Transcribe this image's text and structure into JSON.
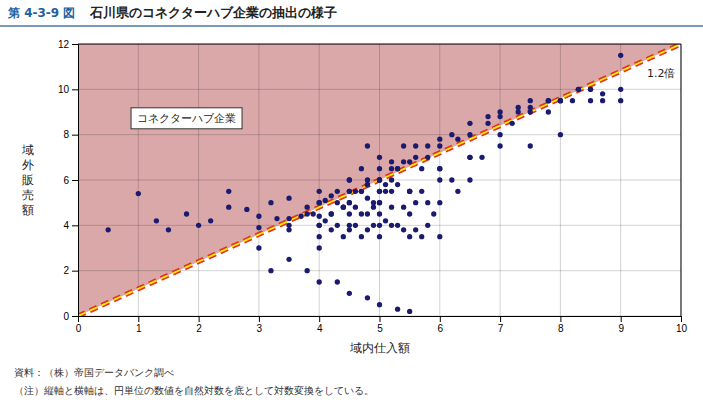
{
  "chart_data": {
    "type": "scatter",
    "figure_label": "第 4-3-9 図",
    "title": "石川県のコネクターハブ企業の抽出の様子",
    "xlabel": "域内仕入額",
    "ylabel": "域外販売額",
    "xlim": [
      0,
      10
    ],
    "ylim": [
      0,
      12
    ],
    "xticks": [
      0,
      1,
      2,
      3,
      4,
      5,
      6,
      7,
      8,
      9,
      10
    ],
    "yticks": [
      0,
      2,
      4,
      6,
      8,
      10,
      12
    ],
    "grid": true,
    "color": "#1a1a6e",
    "marker": "circle",
    "x": [
      0.5,
      1.0,
      1.3,
      1.5,
      1.8,
      2.0,
      2.2,
      2.5,
      2.5,
      2.8,
      3.0,
      3.0,
      3.0,
      3.2,
      3.3,
      3.5,
      3.5,
      3.5,
      3.7,
      3.8,
      3.9,
      4.0,
      4.0,
      4.0,
      4.0,
      4.0,
      4.1,
      4.1,
      4.2,
      4.2,
      4.3,
      4.3,
      4.4,
      4.4,
      4.5,
      4.5,
      4.5,
      4.5,
      4.5,
      4.6,
      4.6,
      4.7,
      4.7,
      4.7,
      4.8,
      4.8,
      4.8,
      4.8,
      4.9,
      4.9,
      5.0,
      5.0,
      5.0,
      5.0,
      5.0,
      5.0,
      5.0,
      5.1,
      5.1,
      5.2,
      5.2,
      5.2,
      5.3,
      5.3,
      5.4,
      5.4,
      5.5,
      5.5,
      5.5,
      5.6,
      5.6,
      5.7,
      5.7,
      5.8,
      5.8,
      5.9,
      6.0,
      6.0,
      6.0,
      6.2,
      6.3,
      6.5,
      6.5,
      6.7,
      7.0,
      7.2,
      7.5,
      7.8,
      8.0,
      8.3,
      8.5,
      9.0,
      4.3,
      4.5,
      4.7,
      4.9,
      5.1,
      5.3,
      5.0,
      5.2,
      5.4,
      4.8,
      5.6,
      4.0,
      4.2,
      4.4,
      4.6,
      4.8,
      5.0,
      5.2,
      5.4,
      5.6,
      5.8,
      6.0,
      6.2,
      6.5,
      6.8,
      7.0,
      7.3,
      7.5,
      7.8,
      8.0,
      8.2,
      8.5,
      8.7,
      9.0,
      4.5,
      4.8,
      5.0,
      5.3,
      5.5,
      5.8,
      6.0,
      6.3,
      6.5,
      6.8,
      7.0,
      7.3,
      7.5,
      7.8,
      8.0,
      8.3,
      8.5,
      8.7,
      9.0,
      3.5,
      3.8,
      4.0,
      4.2,
      4.5,
      4.7,
      5.0,
      5.2,
      5.5,
      5.7,
      6.0,
      3.2,
      3.5,
      3.8,
      4.0,
      4.3,
      4.5,
      4.8,
      5.0,
      5.3,
      5.5,
      4.0,
      4.5,
      5.0,
      5.5,
      6.0,
      6.5,
      7.0,
      7.5,
      8.0
    ],
    "y": [
      3.8,
      5.4,
      4.2,
      3.8,
      4.5,
      4.0,
      4.2,
      4.8,
      5.5,
      4.7,
      3.0,
      3.9,
      4.4,
      5.0,
      4.3,
      4.3,
      5.2,
      3.8,
      4.4,
      4.8,
      4.5,
      4.0,
      4.4,
      5.0,
      5.5,
      3.0,
      4.2,
      5.1,
      3.8,
      5.3,
      4.0,
      5.0,
      3.5,
      4.8,
      3.8,
      4.5,
      5.0,
      5.5,
      6.0,
      4.0,
      4.8,
      3.5,
      4.5,
      5.5,
      3.8,
      4.5,
      5.2,
      6.0,
      4.0,
      4.8,
      4.0,
      4.5,
      5.0,
      5.5,
      6.0,
      6.5,
      3.5,
      4.2,
      5.8,
      4.0,
      4.8,
      5.5,
      4.0,
      5.8,
      3.8,
      4.8,
      3.5,
      4.5,
      5.5,
      3.8,
      5.0,
      3.5,
      5.5,
      4.0,
      5.0,
      4.5,
      3.5,
      5.0,
      6.0,
      6.0,
      5.5,
      6.0,
      7.0,
      7.0,
      8.0,
      8.5,
      9.0,
      9.5,
      9.5,
      10.0,
      10.0,
      11.5,
      5.5,
      6.0,
      6.5,
      5.0,
      5.5,
      6.5,
      7.0,
      6.8,
      7.5,
      7.5,
      7.5,
      4.0,
      4.5,
      4.8,
      5.5,
      5.8,
      6.0,
      6.5,
      6.8,
      7.0,
      7.5,
      7.8,
      8.0,
      8.5,
      8.8,
      9.0,
      9.2,
      9.5,
      9.0,
      9.5,
      9.5,
      10.0,
      9.8,
      9.5,
      5.5,
      5.8,
      6.0,
      6.5,
      6.8,
      7.0,
      7.5,
      7.8,
      8.0,
      8.5,
      8.8,
      9.0,
      9.2,
      9.5,
      9.5,
      10.0,
      9.5,
      9.5,
      10.0,
      4.0,
      4.5,
      5.0,
      4.5,
      5.0,
      5.5,
      5.5,
      6.0,
      5.5,
      6.5,
      6.5,
      2.0,
      2.5,
      2.0,
      1.5,
      1.5,
      1.0,
      0.8,
      0.5,
      0.3,
      0.2,
      3.5,
      4.0,
      5.0,
      5.5,
      6.5,
      7.0,
      7.5,
      7.5,
      8.0
    ],
    "reference_line": {
      "x": [
        0,
        10
      ],
      "y": [
        0,
        12
      ],
      "label": "1.2倍",
      "colors": [
        "#e03020",
        "#ffee00"
      ],
      "line_style": "dashed"
    },
    "shaded_region": {
      "color": "#dba8aa"
    },
    "annotations": [
      "コネクターハブ企業"
    ],
    "source": "資料：（株）帝国データバンク調べ",
    "note": "（注）縦軸と横軸は、円単位の数値を自然対数を底として対数変換をしている。"
  }
}
